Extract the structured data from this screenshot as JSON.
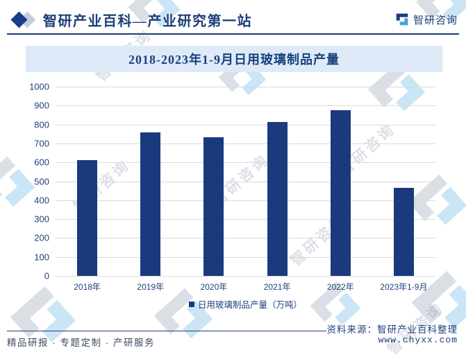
{
  "header": {
    "title": "智研产业百科—产业研究第一站",
    "brand": "智研咨询"
  },
  "chart_data": {
    "type": "bar",
    "title": "2018-2023年1-9月日用玻璃制品产量",
    "categories": [
      "2018年",
      "2019年",
      "2020年",
      "2021年",
      "2022年",
      "2023年1-9月"
    ],
    "values": [
      612,
      760,
      732,
      815,
      875,
      465
    ],
    "legend": "日用玻璃制品产量（万吨）",
    "xlabel": "",
    "ylabel": "",
    "ylim": [
      0,
      1000
    ],
    "ytick_step": 100,
    "grid": true,
    "legend_position": "bottom",
    "bar_color": "#1a3a7d"
  },
  "footer": {
    "services": "精品研报 · 专题定制 · 产研服务",
    "source": "资料来源：智研产业百科整理",
    "website": "www.chyxx.com"
  },
  "watermark": {
    "text": "智研咨询"
  },
  "colors": {
    "navy": "#1a3a7d",
    "header_text": "#1c3d7a",
    "titlebar_bg": "#dfeaf8",
    "grid": "#d9d9d9",
    "logo_blue": "#45a2dd"
  }
}
